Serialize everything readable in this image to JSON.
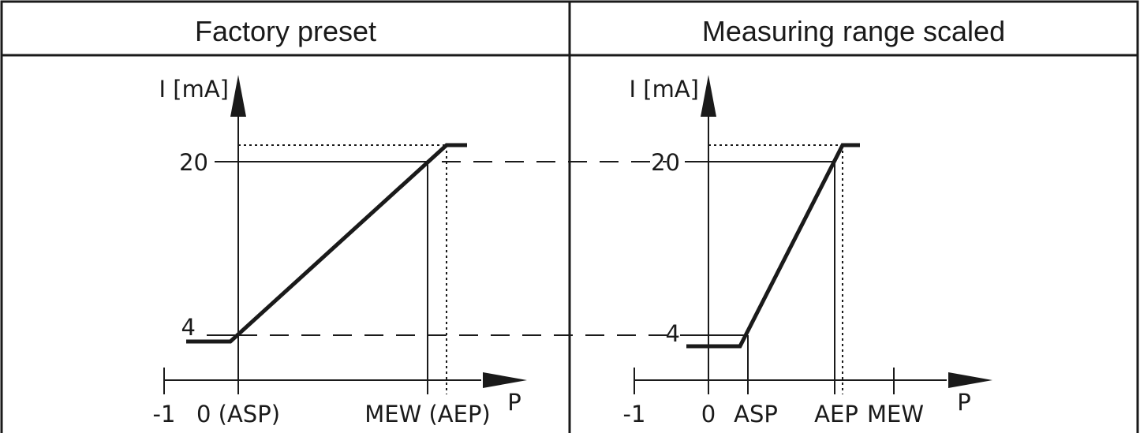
{
  "panels": [
    {
      "header": "Factory preset",
      "y_axis_label": "I [mA]",
      "y_ticks": [
        "20",
        "4"
      ],
      "x_ticks": [
        "-1",
        "0 (ASP)",
        "MEW (AEP)"
      ],
      "x_axis_label": "P"
    },
    {
      "header": "Measuring range scaled",
      "y_axis_label": "I [mA]",
      "y_ticks": [
        "20",
        "4"
      ],
      "x_ticks": [
        "-1",
        "0",
        "ASP",
        "AEP",
        "MEW"
      ],
      "x_axis_label": "P"
    }
  ]
}
